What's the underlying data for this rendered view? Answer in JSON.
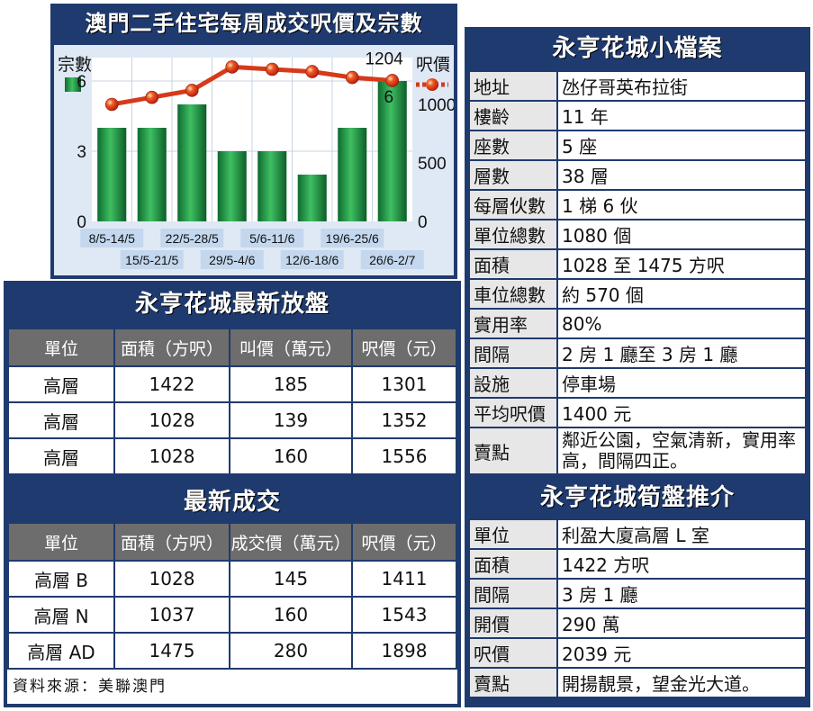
{
  "chart_panel": {
    "title": "澳門二手住宅每周成交呎價及宗數"
  },
  "chart_data": {
    "type": "bar",
    "categories": [
      "8/5-14/5",
      "15/5-21/5",
      "22/5-28/5",
      "29/5-4/6",
      "5/6-11/6",
      "12/6-18/6",
      "19/6-25/6",
      "26/6-2/7"
    ],
    "series": [
      {
        "name": "宗數",
        "type": "bar",
        "axis": "left",
        "values": [
          4,
          4,
          5,
          3,
          3,
          2,
          4,
          6
        ],
        "color": "#2a9a4a"
      },
      {
        "name": "呎價",
        "type": "line",
        "axis": "right",
        "values": [
          1000,
          1060,
          1120,
          1320,
          1300,
          1280,
          1230,
          1204
        ],
        "color": "#d63a1a"
      }
    ],
    "left_axis": {
      "label": "宗數",
      "ticks": [
        0,
        3,
        6
      ],
      "range": [
        0,
        7
      ]
    },
    "right_axis": {
      "label": "呎價",
      "ticks": [
        0,
        500,
        1000
      ],
      "range": [
        0,
        1400
      ]
    },
    "annotations": [
      {
        "text": "1204"
      },
      {
        "text": "6"
      }
    ],
    "grid": true
  },
  "listing": {
    "title": "永亨花城最新放盤",
    "headers": [
      "單位",
      "面積（方呎）",
      "叫價（萬元）",
      "呎價（元）"
    ],
    "rows": [
      [
        "高層",
        "1422",
        "185",
        "1301"
      ],
      [
        "高層",
        "1028",
        "139",
        "1352"
      ],
      [
        "高層",
        "1028",
        "160",
        "1556"
      ]
    ]
  },
  "deals": {
    "title": "最新成交",
    "headers": [
      "單位",
      "面積（方呎）",
      "成交價（萬元）",
      "呎價（元）"
    ],
    "rows": [
      [
        "高層 B",
        "1028",
        "145",
        "1411"
      ],
      [
        "高層 N",
        "1037",
        "160",
        "1543"
      ],
      [
        "高層 AD",
        "1475",
        "280",
        "1898"
      ]
    ],
    "source": "資料來源：美聯澳門"
  },
  "profile": {
    "title": "永亨花城小檔案",
    "rows": [
      {
        "k": "地址",
        "v": "氹仔哥英布拉街"
      },
      {
        "k": "樓齡",
        "v": "11 年"
      },
      {
        "k": "座數",
        "v": "5 座"
      },
      {
        "k": "層數",
        "v": "38 層"
      },
      {
        "k": "每層伙數",
        "v": "1 梯 6 伙"
      },
      {
        "k": "單位總數",
        "v": "1080 個"
      },
      {
        "k": "面積",
        "v": "1028 至 1475 方呎"
      },
      {
        "k": "車位總數",
        "v": "約 570 個"
      },
      {
        "k": "實用率",
        "v": "80%"
      },
      {
        "k": "間隔",
        "v": "2 房 1 廳至 3 房 1 廳"
      },
      {
        "k": "設施",
        "v": "停車場"
      },
      {
        "k": "平均呎價",
        "v": "1400 元"
      },
      {
        "k": "賣點",
        "v": "鄰近公園，空氣清新，實用率高，間隔四正。"
      }
    ]
  },
  "promo": {
    "title": "永亨花城筍盤推介",
    "rows": [
      {
        "k": "單位",
        "v": "利盈大廈高層 L 室"
      },
      {
        "k": "面積",
        "v": "1422 方呎"
      },
      {
        "k": "間隔",
        "v": "3 房 1 廳"
      },
      {
        "k": "開價",
        "v": "290 萬"
      },
      {
        "k": "呎價",
        "v": "2039 元"
      },
      {
        "k": "賣點",
        "v": "開揚靚景，望金光大道。"
      }
    ]
  }
}
